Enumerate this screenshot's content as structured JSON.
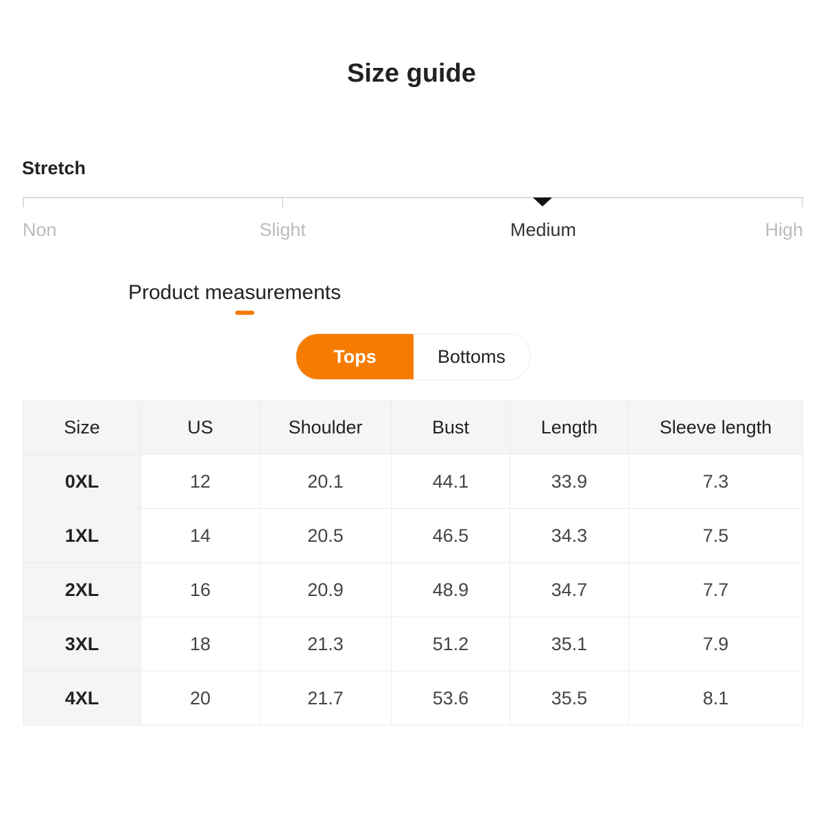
{
  "title": "Size guide",
  "stretch": {
    "label": "Stretch",
    "levels": [
      "Non",
      "Slight",
      "Medium",
      "High"
    ],
    "selected": "Medium"
  },
  "measurements": {
    "title": "Product measurements",
    "accent": "#f57c00"
  },
  "tabs": [
    {
      "label": "Tops",
      "active": true
    },
    {
      "label": "Bottoms",
      "active": false
    }
  ],
  "table": {
    "headers": [
      "Size",
      "US",
      "Shoulder",
      "Bust",
      "Length",
      "Sleeve length"
    ],
    "rows": [
      [
        "0XL",
        "12",
        "20.1",
        "44.1",
        "33.9",
        "7.3"
      ],
      [
        "1XL",
        "14",
        "20.5",
        "46.5",
        "34.3",
        "7.5"
      ],
      [
        "2XL",
        "16",
        "20.9",
        "48.9",
        "34.7",
        "7.7"
      ],
      [
        "3XL",
        "18",
        "21.3",
        "51.2",
        "35.1",
        "7.9"
      ],
      [
        "4XL",
        "20",
        "21.7",
        "53.6",
        "35.5",
        "8.1"
      ]
    ]
  }
}
